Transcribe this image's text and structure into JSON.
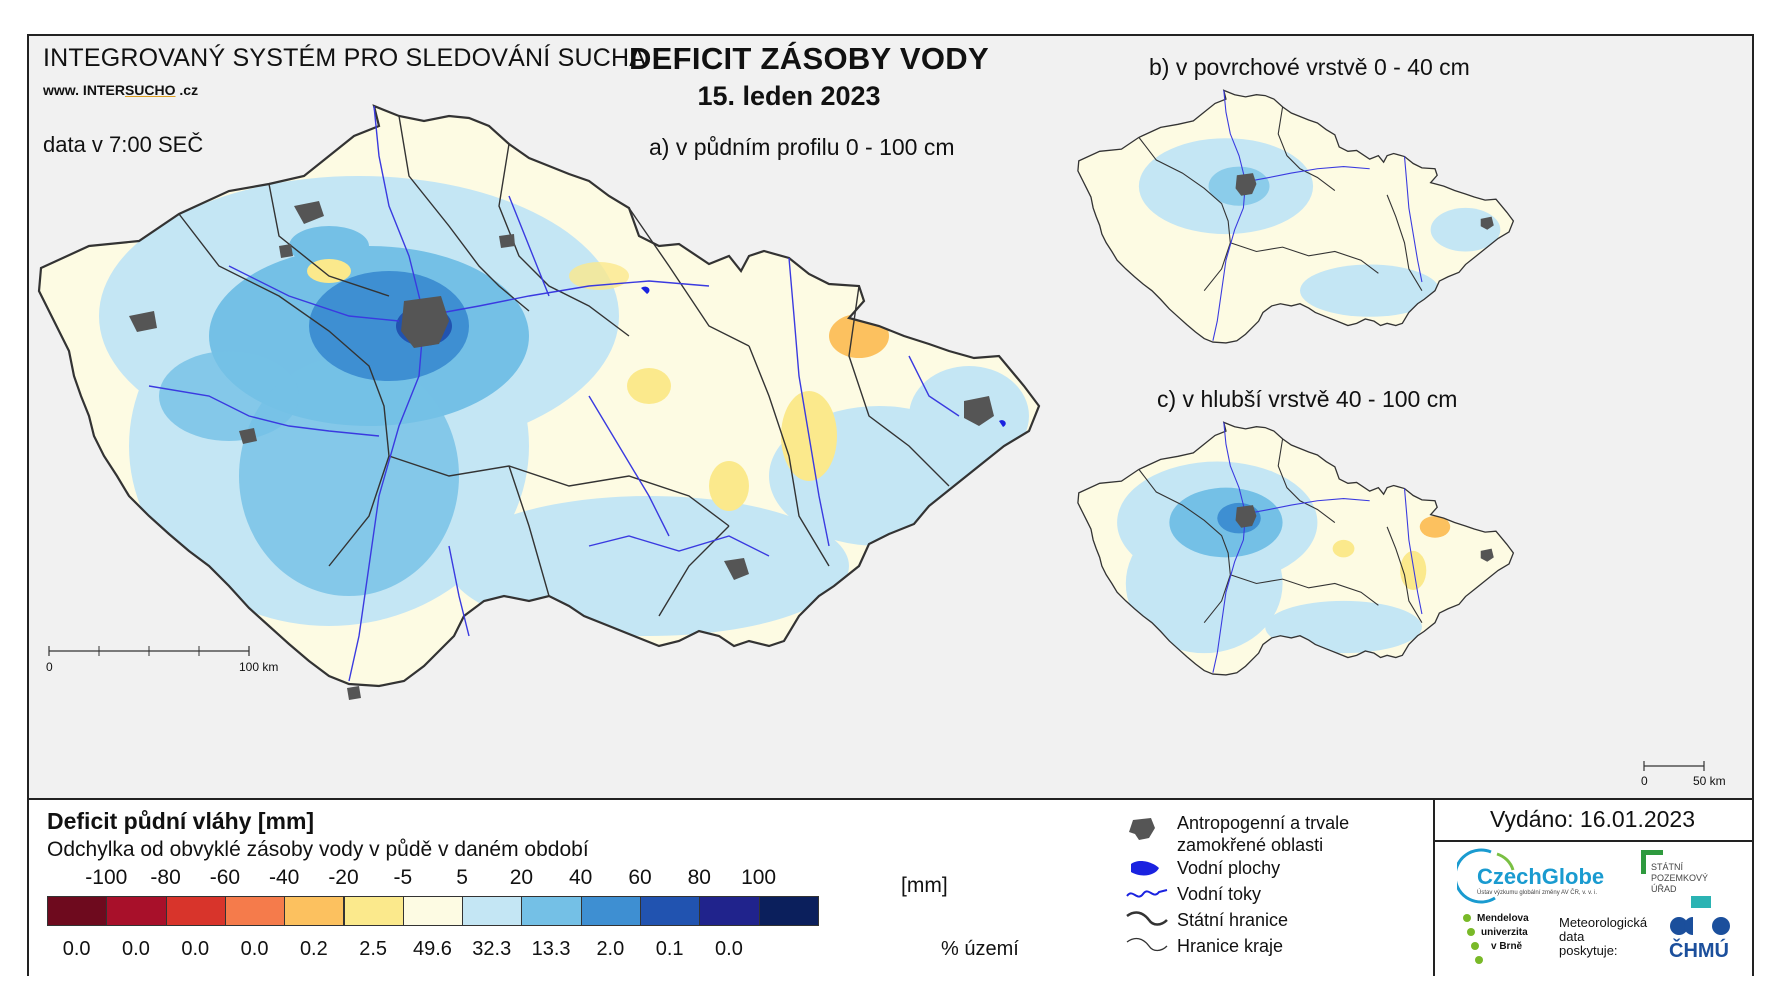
{
  "header": {
    "system_title": "INTEGROVANÝ SYSTÉM PRO SLEDOVÁNÍ SUCHA",
    "website_prefix": "www. INTER",
    "website_mid": "SUCHO",
    "website_suffix": " .cz",
    "title": "DEFICIT ZÁSOBY VODY",
    "date": "15. leden 2023",
    "data_time": "data v 7:00 SEČ"
  },
  "maps": {
    "main_label": "a) v půdním profilu 0 - 100 cm",
    "surface_label": "b) v povrchové vrstvě 0 - 40 cm",
    "deep_label": "c) v hlubší vrstvě 40 - 100 cm",
    "main_scale": {
      "start": "0",
      "end": "100 km"
    },
    "small_scale": {
      "start": "0",
      "end": "50 km"
    }
  },
  "legend": {
    "title": "Deficit půdní vláhy  [mm]",
    "subtitle": "Odchylka od obvyklé zásoby vody v půdě v daném období",
    "unit_label": "[mm]",
    "percent_label": "% území",
    "ticks": [
      "-100",
      "-80",
      "-60",
      "-40",
      "-20",
      "-5",
      "5",
      "20",
      "40",
      "60",
      "80",
      "100"
    ],
    "classes": [
      {
        "color": "#6e0a1e",
        "percent": "0.0"
      },
      {
        "color": "#a8102a",
        "percent": "0.0"
      },
      {
        "color": "#d8342b",
        "percent": "0.0"
      },
      {
        "color": "#f57b4b",
        "percent": "0.0"
      },
      {
        "color": "#fcc15f",
        "percent": "0.2"
      },
      {
        "color": "#fbe98c",
        "percent": "2.5"
      },
      {
        "color": "#fdfbe3",
        "percent": "49.6"
      },
      {
        "color": "#c4e6f4",
        "percent": "32.3"
      },
      {
        "color": "#74c0e6",
        "percent": "13.3"
      },
      {
        "color": "#3e8fd2",
        "percent": "2.0"
      },
      {
        "color": "#2153b0",
        "percent": "0.1"
      },
      {
        "color": "#20238c",
        "percent": "0.0"
      },
      {
        "color": "#0b1f5c",
        "percent": ""
      }
    ]
  },
  "symbols": {
    "anthropogenic": "Antropogenní a trvale zamokřené oblasti",
    "water_bodies": "Vodní plochy",
    "rivers": "Vodní toky",
    "state_border": "Státní hranice",
    "region_border": "Hranice kraje"
  },
  "footer": {
    "issued": "Vydáno: 16.01.2023",
    "czechglobe": "CzechGlobe",
    "czechglobe_sub": "Ústav výzkumu globální změny AV ČR, v. v. i.",
    "spu": "STÁTNÍ POZEMKOVÝ ÚŘAD",
    "mendelu_1": "Mendelova",
    "mendelu_2": "univerzita",
    "mendelu_3": "v Brně",
    "met_1": "Meteorologická",
    "met_2": "data",
    "met_3": "poskytuje:",
    "chmu": "ČHMÚ"
  }
}
